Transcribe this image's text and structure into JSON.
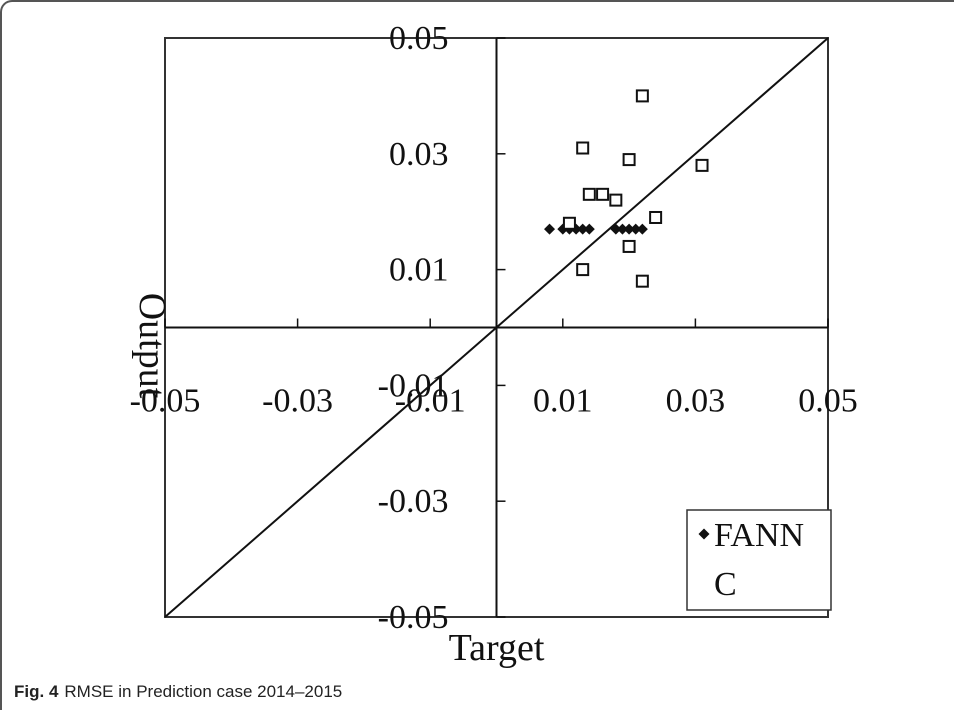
{
  "caption": {
    "fig_label": "Fig. 4",
    "text": "RMSE in Prediction case 2014–2015"
  },
  "chart_data": {
    "type": "scatter",
    "xlabel": "Target",
    "ylabel": "Output",
    "xlim": [
      -0.05,
      0.05
    ],
    "ylim": [
      -0.05,
      0.05
    ],
    "x_ticks": [
      -0.05,
      -0.03,
      -0.01,
      0.01,
      0.03,
      0.05
    ],
    "y_ticks": [
      -0.05,
      -0.03,
      -0.01,
      0.01,
      0.03,
      0.05
    ],
    "x_tick_labels": [
      "-0.05",
      "-0.03",
      "-0.01",
      "0.01",
      "0.03",
      "0.05"
    ],
    "y_tick_labels": [
      "-0.05",
      "-0.03",
      "-0.01",
      "0.01",
      "0.03",
      "0.05"
    ],
    "grid": false,
    "reference_line": "y = x",
    "legend_placement": "bottom-right",
    "series": [
      {
        "name": "FANN",
        "marker": "diamond",
        "points": [
          [
            0.008,
            0.017
          ],
          [
            0.01,
            0.017
          ],
          [
            0.011,
            0.017
          ],
          [
            0.012,
            0.017
          ],
          [
            0.013,
            0.017
          ],
          [
            0.014,
            0.017
          ],
          [
            0.018,
            0.017
          ],
          [
            0.019,
            0.017
          ],
          [
            0.02,
            0.017
          ],
          [
            0.021,
            0.017
          ],
          [
            0.022,
            0.017
          ]
        ]
      },
      {
        "name": "C",
        "marker": "square",
        "points": [
          [
            0.022,
            0.04
          ],
          [
            0.013,
            0.031
          ],
          [
            0.02,
            0.029
          ],
          [
            0.031,
            0.028
          ],
          [
            0.014,
            0.023
          ],
          [
            0.016,
            0.023
          ],
          [
            0.018,
            0.022
          ],
          [
            0.024,
            0.019
          ],
          [
            0.011,
            0.018
          ],
          [
            0.02,
            0.014
          ],
          [
            0.013,
            0.01
          ],
          [
            0.022,
            0.008
          ]
        ]
      }
    ]
  }
}
